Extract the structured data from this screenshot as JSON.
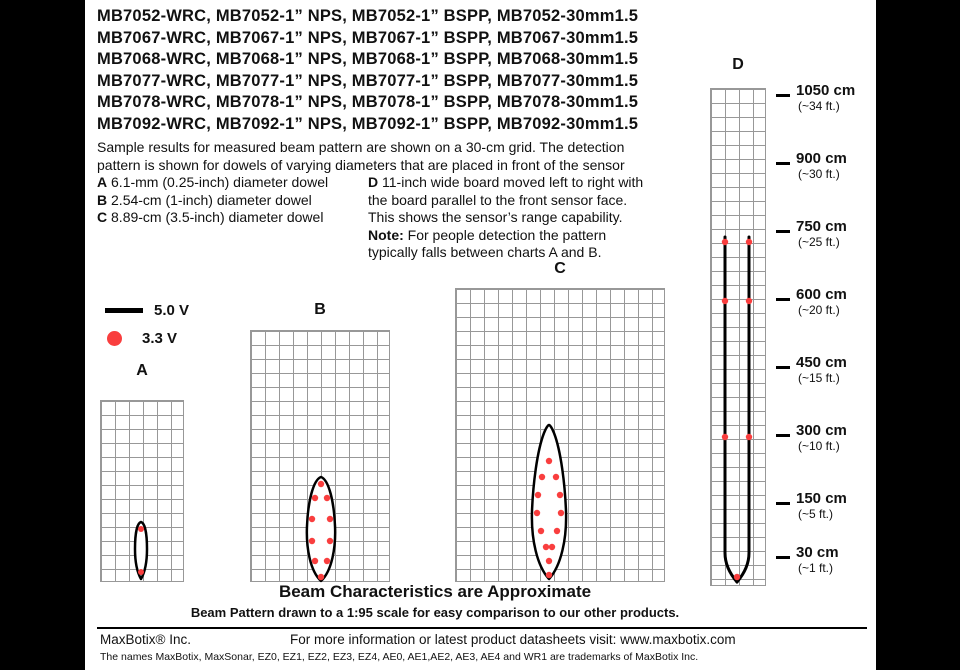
{
  "colors": {
    "background": "#000000",
    "paper": "#ffffff",
    "grid_line": "#989898",
    "beam_line": "#000000",
    "dot": "#f93e3e",
    "text": "#111111"
  },
  "header": {
    "model_lines": [
      "MB7052-WRC, MB7052-1” NPS, MB7052-1” BSPP, MB7052-30mm1.5",
      "MB7067-WRC, MB7067-1” NPS, MB7067-1” BSPP, MB7067-30mm1.5",
      "MB7068-WRC, MB7068-1” NPS, MB7068-1” BSPP, MB7068-30mm1.5",
      "MB7077-WRC, MB7077-1” NPS, MB7077-1” BSPP, MB7077-30mm1.5",
      "MB7078-WRC, MB7078-1” NPS, MB7078-1” BSPP, MB7078-30mm1.5",
      "MB7092-WRC, MB7092-1” NPS, MB7092-1” BSPP, MB7092-30mm1.5"
    ]
  },
  "description": {
    "intro": [
      "Sample results for measured beam pattern are shown on a 30-cm grid. The detection",
      "pattern is shown for dowels of varying diameters that are placed in front of the sensor"
    ],
    "dowels": [
      {
        "key": "A",
        "text": " 6.1-mm (0.25-inch) diameter dowel"
      },
      {
        "key": "B",
        "text": " 2.54-cm (1-inch) diameter dowel"
      },
      {
        "key": "C",
        "text": " 8.89-cm (3.5-inch) diameter dowel"
      }
    ],
    "board": {
      "key": "D",
      "lines": [
        " 11-inch wide board moved left to right with",
        "the board parallel to the front sensor face.",
        "This shows the sensor’s range capability."
      ]
    },
    "note": {
      "label": "Note:",
      "lines": [
        " For people detection the pattern",
        "typically falls between charts A and B."
      ]
    }
  },
  "legend": {
    "line_label": "5.0 V",
    "dot_label": "3.3 V"
  },
  "scale": {
    "ticks": [
      {
        "cm": "1050 cm",
        "ft": "(~34 ft.)"
      },
      {
        "cm": "900 cm",
        "ft": "(~30 ft.)"
      },
      {
        "cm": "750 cm",
        "ft": "(~25 ft.)"
      },
      {
        "cm": "600 cm",
        "ft": "(~20 ft.)"
      },
      {
        "cm": "450 cm",
        "ft": "(~15 ft.)"
      },
      {
        "cm": "300 cm",
        "ft": "(~10 ft.)"
      },
      {
        "cm": "150 cm",
        "ft": "(~5 ft.)"
      },
      {
        "cm": "30 cm",
        "ft": "(~1 ft.)"
      }
    ]
  },
  "footnotes": {
    "approx": "Beam Characteristics are Approximate",
    "scale_note": "Beam Pattern drawn to a 1:95 scale for easy comparison to our other products."
  },
  "footer": {
    "company": "MaxBotix® Inc.",
    "info": "For more information or latest product datasheets visit:  www.maxbotix.com",
    "trademark": "The names MaxBotix, MaxSonar, EZ0, EZ1, EZ2, EZ3, EZ4, AE0, AE1,AE2, AE3, AE4 and WR1 are trademarks of MaxBotix Inc."
  },
  "chart_data": {
    "type": "area",
    "subtype": "ultrasonic-beam-pattern",
    "grid_cell_cm": 30,
    "scale_ticks_cm": [
      1050,
      900,
      750,
      600,
      450,
      300,
      150,
      30
    ],
    "charts": [
      {
        "id": "A",
        "label": "A",
        "target": "6.1-mm (0.25-inch) diameter dowel",
        "grid_cols": 6,
        "grid_rows": 13,
        "approx_max_range_cm": 120,
        "approx_max_width_cm": 15,
        "fill": "#ffffff",
        "stroke_width": 2.5,
        "dot_r": 3,
        "beam_paths": [
          "M40,178 C36,171 34,161 34,148 C34,133 36,122 40,121 C44,122 46,133 46,148 C46,161 44,171 40,178 Z"
        ],
        "dots": [
          [
            40,
            128
          ],
          [
            40,
            171
          ]
        ]
      },
      {
        "id": "B",
        "label": "B",
        "target": "2.54-cm (1-inch) diameter dowel",
        "grid_cols": 10,
        "grid_rows": 18,
        "approx_max_range_cm": 215,
        "approx_max_width_cm": 60,
        "fill": "#ffffff",
        "stroke_width": 2.5,
        "dot_r": 3.2,
        "beam_paths": [
          "M70,250 C59,240 55,216 56,195 C57,171 62,149 70,146 C78,149 83,171 84,195 C85,216 81,240 70,250 Z"
        ],
        "dots": [
          [
            70,
            153
          ],
          [
            64,
            167
          ],
          [
            76,
            167
          ],
          [
            61,
            188
          ],
          [
            79,
            188
          ],
          [
            61,
            210
          ],
          [
            79,
            210
          ],
          [
            64,
            230
          ],
          [
            76,
            230
          ],
          [
            70,
            246
          ]
        ]
      },
      {
        "id": "C",
        "label": "C",
        "target": "8.89-cm (3.5-inch) diameter dowel",
        "grid_cols": 15,
        "grid_rows": 21,
        "approx_max_range_cm": 330,
        "approx_max_width_cm": 75,
        "fill": "#ffffff",
        "stroke_width": 2.5,
        "dot_r": 3.2,
        "beam_paths": [
          "M93,290 C81,277 75,250 76,222 C77,196 81,162 88,144 C90,139 92,136 93,136 C94,136 96,139 98,144 C105,162 109,196 110,222 C111,250 105,277 93,290 Z"
        ],
        "dots": [
          [
            93,
            172
          ],
          [
            86,
            188
          ],
          [
            100,
            188
          ],
          [
            82,
            206
          ],
          [
            104,
            206
          ],
          [
            81,
            224
          ],
          [
            105,
            224
          ],
          [
            85,
            242
          ],
          [
            101,
            242
          ],
          [
            90,
            258
          ],
          [
            96,
            258
          ],
          [
            93,
            272
          ],
          [
            93,
            286
          ]
        ]
      },
      {
        "id": "D",
        "label": "D",
        "target": "11-inch wide board moved left to right",
        "grid_cols": 4,
        "grid_rows": 36,
        "approx_max_range_cm": 750,
        "approx_board_path_offset_cm": 26,
        "fill": "none",
        "stroke_width": 3,
        "dot_r": 3.2,
        "beam_paths": [
          "M14,148 L14,464 Q14,479 26,493",
          "M38,148 L38,464 Q38,479 26,493"
        ],
        "dots": [
          [
            14,
            153
          ],
          [
            38,
            153
          ],
          [
            14,
            212
          ],
          [
            38,
            212
          ],
          [
            14,
            348
          ],
          [
            38,
            348
          ],
          [
            26,
            488
          ]
        ]
      }
    ]
  }
}
